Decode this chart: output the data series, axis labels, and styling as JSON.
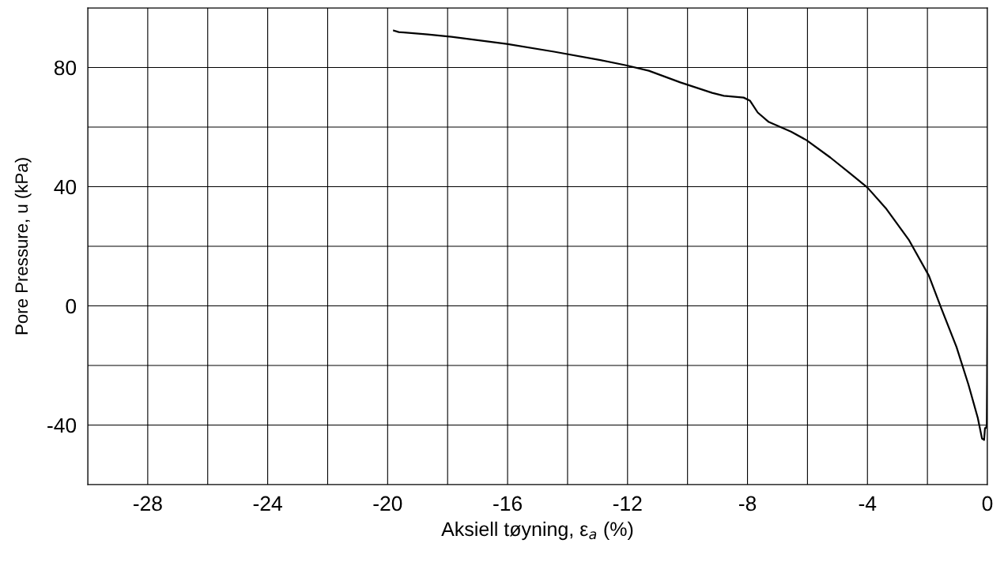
{
  "chart_data": {
    "type": "line",
    "xlabel": "Aksiell tøyning, ε$_{a}$ (%)",
    "ylabel": "Pore Pressure, u (kPa)",
    "xlim": [
      -30,
      0
    ],
    "ylim": [
      -60,
      100
    ],
    "xticks": [
      {
        "value": -30,
        "label": null
      },
      -28,
      {
        "value": -26,
        "label": null
      },
      -24,
      {
        "value": -22,
        "label": null
      },
      -20,
      {
        "value": -18,
        "label": null
      },
      -16,
      {
        "value": -14,
        "label": null
      },
      -12,
      {
        "value": -10,
        "label": null
      },
      -8,
      {
        "value": -6,
        "label": null
      },
      -4,
      {
        "value": -2,
        "label": null
      },
      0
    ],
    "yticks": [
      {
        "value": -60,
        "label": null
      },
      -40,
      {
        "value": -20,
        "label": null
      },
      0,
      {
        "value": 20,
        "label": null
      },
      40,
      {
        "value": 60,
        "label": null
      },
      80,
      {
        "value": 100,
        "label": null
      }
    ],
    "grid": true,
    "marker": "none",
    "line_style": "solid",
    "series": [
      {
        "color": "#000000",
        "x": [
          -19.79,
          -19.63,
          -18.66,
          -17.87,
          -16.03,
          -14.45,
          -12.87,
          -12.08,
          -11.29,
          -10.24,
          -9.18,
          -8.79,
          -8.13,
          -7.92,
          -7.66,
          -7.29,
          -6.55,
          -6.03,
          -5.24,
          -4.58,
          -4.0,
          -3.39,
          -2.61,
          -1.95,
          -1.55,
          -1.03,
          -0.63,
          -0.32,
          -0.18,
          -0.11,
          -0.08,
          -0.05,
          -0.02,
          -0.01,
          0.0
        ],
        "values": [
          92.4,
          91.9,
          91.1,
          90.3,
          87.9,
          85.3,
          82.4,
          80.8,
          78.9,
          75.0,
          71.5,
          70.5,
          69.9,
          68.9,
          64.9,
          61.7,
          58.5,
          55.6,
          49.8,
          44.5,
          39.7,
          32.8,
          22.0,
          10.1,
          -0.5,
          -13.8,
          -26.5,
          -37.6,
          -44.5,
          -45.0,
          -41.0,
          -41.0,
          -40.0,
          -25.0,
          0.0
        ]
      }
    ]
  }
}
